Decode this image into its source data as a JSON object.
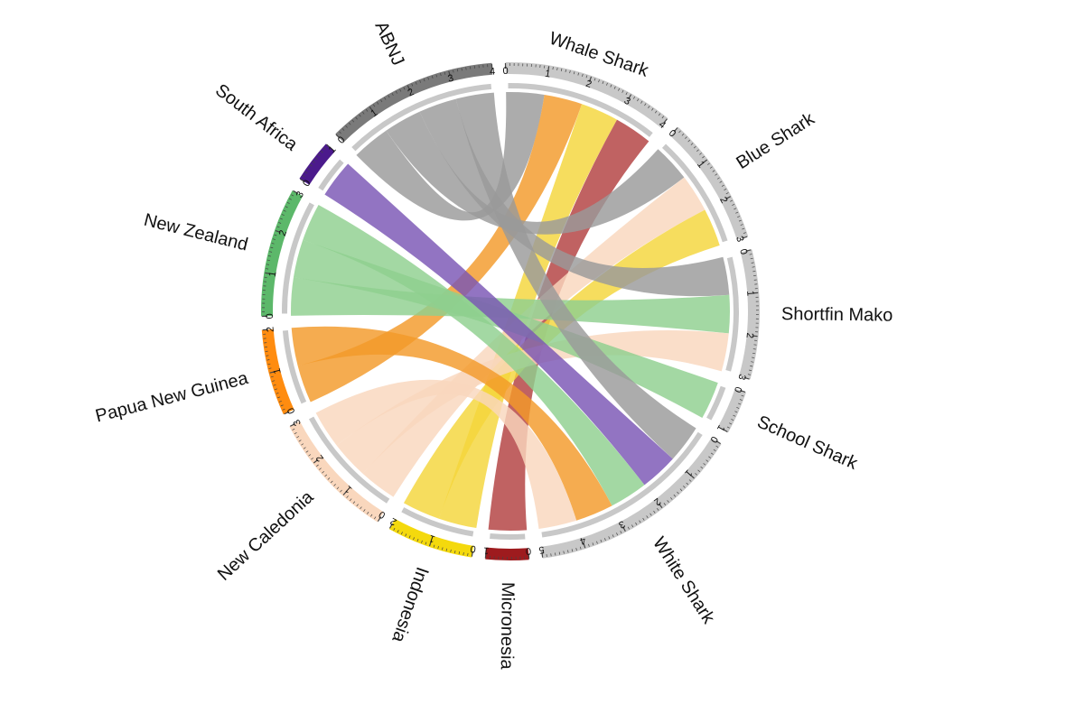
{
  "chart_data": {
    "type": "chord",
    "title": "",
    "segments": [
      {
        "id": "whale",
        "label": "Whale Shark",
        "value": 4,
        "color": "#c8c8c8"
      },
      {
        "id": "blue",
        "label": "Blue Shark",
        "value": 3,
        "color": "#c8c8c8"
      },
      {
        "id": "mako",
        "label": "Shortfin Mako",
        "value": 3,
        "color": "#c8c8c8"
      },
      {
        "id": "school",
        "label": "School Shark",
        "value": 1,
        "color": "#c8c8c8"
      },
      {
        "id": "white",
        "label": "White Shark",
        "value": 5,
        "color": "#c8c8c8"
      },
      {
        "id": "micronesia",
        "label": "Micronesia",
        "value": 1,
        "color": "#9e1b1e"
      },
      {
        "id": "indonesia",
        "label": "Indonesia",
        "value": 2,
        "color": "#f4d90d"
      },
      {
        "id": "newcaledonia",
        "label": "New Caledonia",
        "value": 3,
        "color": "#f9d7bd"
      },
      {
        "id": "png",
        "label": "Papua New Guinea",
        "value": 2,
        "color": "#ff8c10"
      },
      {
        "id": "newzealand",
        "label": "New Zealand",
        "value": 3,
        "color": "#5cb86a"
      },
      {
        "id": "southafrica",
        "label": "South Africa",
        "value": 1,
        "color": "#4b1a8c"
      },
      {
        "id": "abnj",
        "label": "ABNJ",
        "value": 4,
        "color": "#7a7a7a"
      }
    ],
    "links": [
      {
        "source": "whale",
        "target": "abnj",
        "value": 1,
        "color": "#9a9a9a"
      },
      {
        "source": "whale",
        "target": "png",
        "value": 1,
        "color": "#f39a2a"
      },
      {
        "source": "whale",
        "target": "indonesia",
        "value": 1,
        "color": "#f4d53a"
      },
      {
        "source": "whale",
        "target": "micronesia",
        "value": 1,
        "color": "#b24040"
      },
      {
        "source": "blue",
        "target": "abnj",
        "value": 1,
        "color": "#9a9a9a"
      },
      {
        "source": "blue",
        "target": "newcaledonia",
        "value": 1,
        "color": "#f9d7bd"
      },
      {
        "source": "blue",
        "target": "indonesia",
        "value": 1,
        "color": "#f4d53a"
      },
      {
        "source": "mako",
        "target": "abnj",
        "value": 1,
        "color": "#9a9a9a"
      },
      {
        "source": "mako",
        "target": "newzealand",
        "value": 1,
        "color": "#8fd08f"
      },
      {
        "source": "mako",
        "target": "newcaledonia",
        "value": 1,
        "color": "#f9d7bd"
      },
      {
        "source": "school",
        "target": "newzealand",
        "value": 1,
        "color": "#8fd08f"
      },
      {
        "source": "white",
        "target": "abnj",
        "value": 1,
        "color": "#9a9a9a"
      },
      {
        "source": "white",
        "target": "southafrica",
        "value": 1,
        "color": "#7a55b5"
      },
      {
        "source": "white",
        "target": "newzealand",
        "value": 1,
        "color": "#8fd08f"
      },
      {
        "source": "white",
        "target": "png",
        "value": 1,
        "color": "#f39a2a"
      },
      {
        "source": "white",
        "target": "newcaledonia",
        "value": 1,
        "color": "#f9d7bd"
      }
    ]
  }
}
